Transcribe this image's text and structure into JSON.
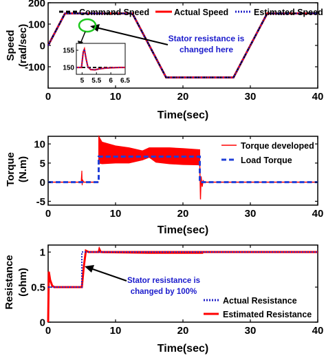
{
  "colors": {
    "command": "#000000",
    "actual": "#ff0000",
    "estimated": "#2020c8",
    "load": "#1f3fd8",
    "annotation_text": "#1a1acc",
    "ring": "#1ec81e"
  },
  "chart_data": [
    {
      "type": "line",
      "xlabel": "Time(sec)",
      "ylabel": [
        "Speed",
        "(rad/sec)"
      ],
      "xlim": [
        0,
        40
      ],
      "ylim": [
        -200,
        200
      ],
      "xticks": [
        0,
        10,
        20,
        30,
        40
      ],
      "yticks": [
        -100,
        0,
        100,
        200
      ],
      "xtick_labels": [
        "0",
        "10",
        "20",
        "30",
        "40"
      ],
      "ytick_labels": [
        "-100",
        "0",
        "100",
        "200"
      ],
      "legend_position": "top",
      "series": [
        {
          "name": "Command Speed",
          "style": "dashed",
          "color": "command",
          "x": [
            0,
            2.5,
            12.5,
            17.5,
            27.5,
            32.5,
            40
          ],
          "y": [
            0,
            150,
            150,
            -150,
            -150,
            150,
            150
          ]
        },
        {
          "name": "Actual Speed",
          "style": "solid",
          "color": "actual",
          "x": [
            0,
            2.5,
            12.5,
            17.5,
            27.5,
            32.5,
            40
          ],
          "y": [
            0,
            150,
            150,
            -150,
            -150,
            150,
            150
          ]
        },
        {
          "name": "Estimated Speed",
          "style": "dotted",
          "color": "estimated",
          "x": [
            0,
            2.5,
            12.5,
            17.5,
            27.5,
            32.5,
            40
          ],
          "y": [
            0,
            150,
            150,
            -150,
            -150,
            150,
            150
          ]
        }
      ],
      "annotation": {
        "lines": [
          "Stator resistance is",
          "changed here"
        ],
        "target": [
          5,
          150
        ]
      },
      "inset": {
        "xlim": [
          4.8,
          6.5
        ],
        "ylim": [
          148,
          157
        ],
        "xticks": [
          5,
          5.5,
          6,
          6.5
        ],
        "xtick_labels": [
          "5",
          "5.5",
          "6",
          "6.5"
        ],
        "yticks": [
          150,
          155
        ],
        "ytick_labels": [
          "150",
          "155"
        ],
        "command": {
          "x": [
            4.8,
            6.5
          ],
          "y": [
            150,
            150
          ]
        },
        "response": {
          "x": [
            4.8,
            4.98,
            5.04,
            5.08,
            5.14,
            5.2,
            5.3,
            5.45,
            5.6,
            5.8,
            6.0,
            6.3,
            6.5
          ],
          "y": [
            150,
            150,
            154.5,
            155.3,
            152.5,
            150.2,
            149.4,
            149.3,
            149.6,
            149.8,
            149.9,
            150,
            150
          ]
        }
      }
    },
    {
      "type": "line",
      "xlabel": "Time(sec)",
      "ylabel": [
        "Torque",
        "(N.m)"
      ],
      "xlim": [
        0,
        40
      ],
      "ylim": [
        -6,
        12
      ],
      "xticks": [
        0,
        10,
        20,
        30,
        40
      ],
      "yticks": [
        -5,
        0,
        5,
        10
      ],
      "xtick_labels": [
        "0",
        "10",
        "20",
        "30",
        "40"
      ],
      "ytick_labels": [
        "-5",
        "0",
        "5",
        "10"
      ],
      "legend_position": "top-right",
      "series": [
        {
          "name": "Torque developed",
          "style": "solid",
          "color": "actual",
          "band": {
            "x": [
              7.5,
              8,
              10,
              12,
              14,
              15,
              16,
              18,
              20,
              22.5
            ],
            "upper": [
              12,
              10.5,
              9.5,
              9,
              8.2,
              9,
              9,
              9,
              8.8,
              8.5
            ],
            "lower": [
              5,
              4.8,
              5,
              5,
              5.8,
              6.5,
              5.2,
              4.8,
              4.6,
              4.5
            ]
          }
        },
        {
          "name": "Load Torque",
          "style": "dashed",
          "color": "load",
          "x": [
            0,
            7.5,
            7.5,
            22.5,
            22.5,
            40
          ],
          "y": [
            0,
            0,
            6.7,
            6.7,
            0,
            0
          ]
        }
      ]
    },
    {
      "type": "line",
      "xlabel": "Time(sec)",
      "ylabel": [
        "Resistance",
        "(ohm)"
      ],
      "xlim": [
        0,
        40
      ],
      "ylim": [
        0,
        1.1
      ],
      "xticks": [
        0,
        10,
        20,
        30,
        40
      ],
      "yticks": [
        0,
        0.5,
        1
      ],
      "xtick_labels": [
        "0",
        "10",
        "20",
        "30",
        "40"
      ],
      "ytick_labels": [
        "0",
        "0.5",
        "1"
      ],
      "legend_position": "bottom-right",
      "series": [
        {
          "name": "Actual Resistance",
          "style": "dotted",
          "color": "estimated",
          "x": [
            0,
            5,
            5,
            40
          ],
          "y": [
            0.5,
            0.5,
            1,
            1
          ]
        },
        {
          "name": "Estimated Resistance",
          "style": "solid",
          "color": "actual",
          "x": [
            0,
            0.1,
            0.3,
            0.6,
            0.9,
            1.3,
            5,
            5.3,
            5.6,
            6.0,
            6.5,
            7.5,
            7.6,
            7.8,
            8,
            23,
            40
          ],
          "y": [
            0,
            0.72,
            0.6,
            0.52,
            0.5,
            0.5,
            0.5,
            0.8,
            1.02,
            1.0,
            1.0,
            1.0,
            1.04,
            1.0,
            1.0,
            1.0,
            1.0
          ]
        }
      ],
      "annotation": {
        "lines": [
          "Stator resistance is",
          "changed by 100%"
        ],
        "target": [
          5.3,
          0.75
        ]
      }
    }
  ]
}
